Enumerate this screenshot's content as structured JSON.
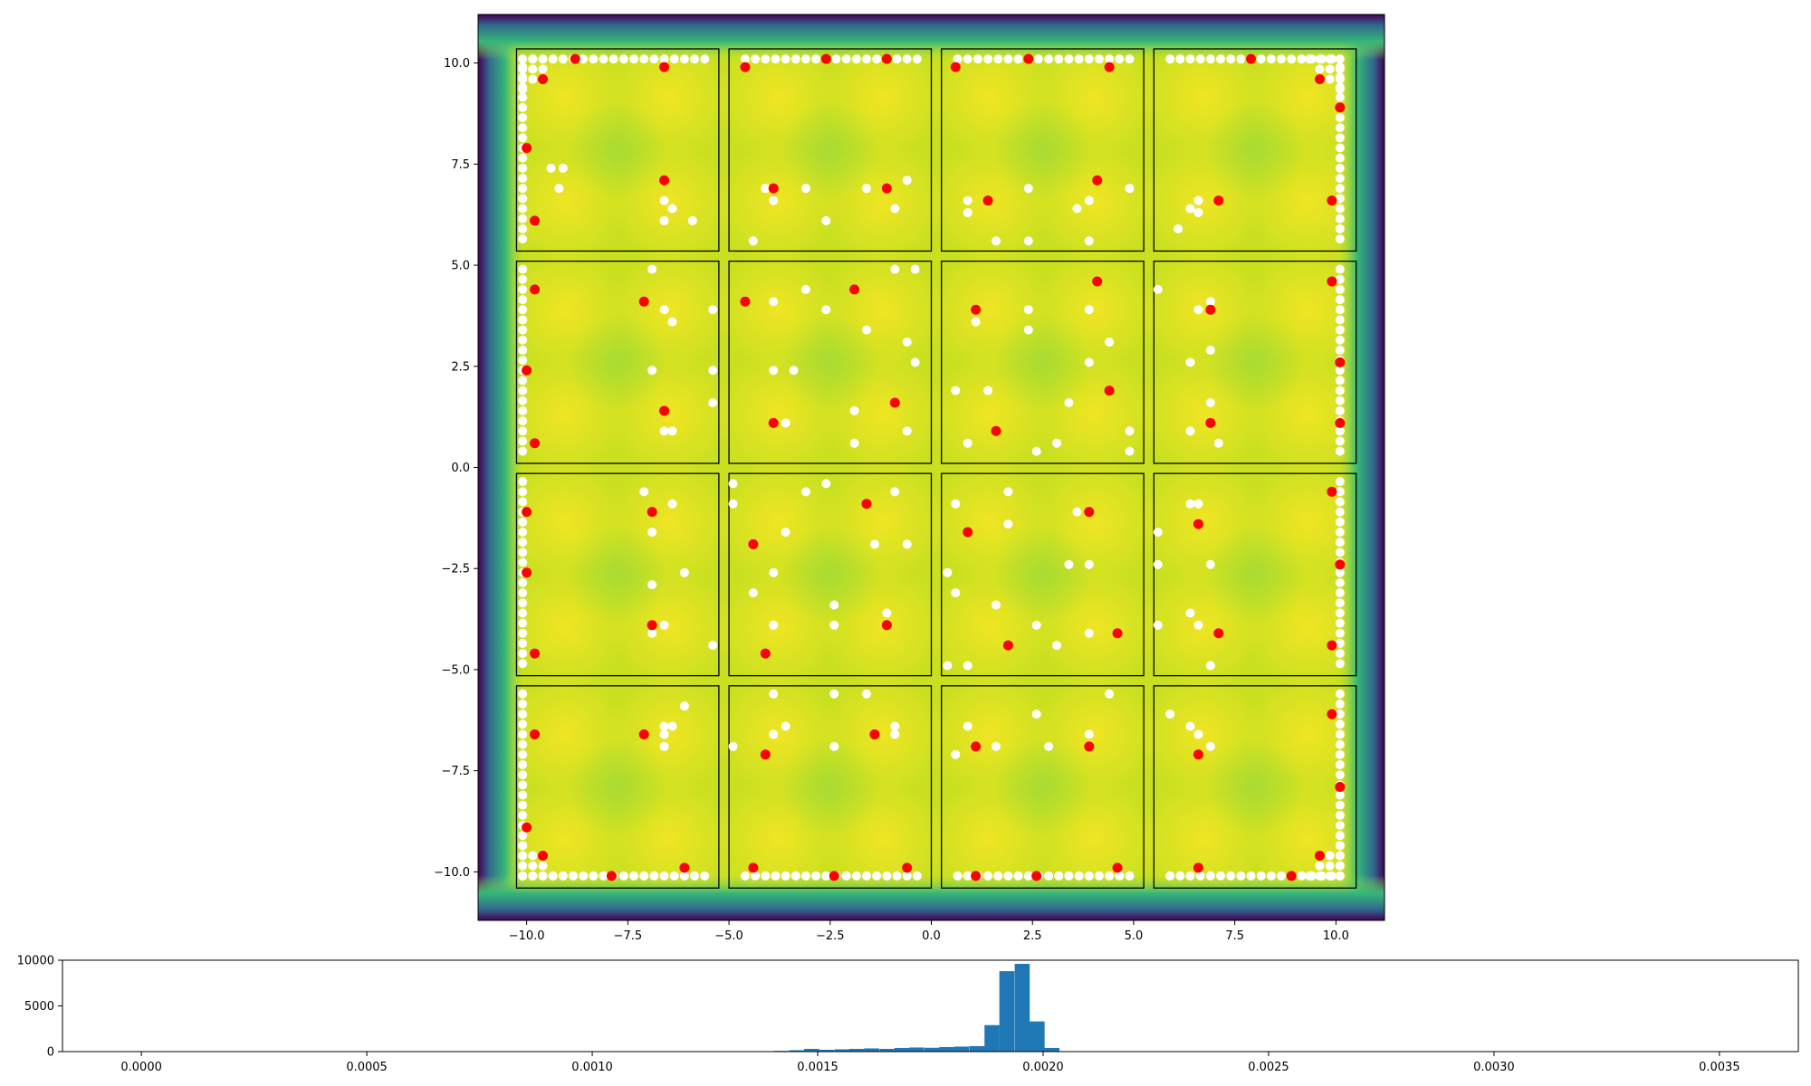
{
  "chart_data": [
    {
      "type": "heatmap",
      "title": "",
      "xlabel": "",
      "ylabel": "",
      "xlim": [
        -11.2,
        11.2
      ],
      "ylim": [
        -11.2,
        11.2
      ],
      "xticks": [
        -10,
        -7.5,
        -5,
        -2.5,
        0,
        2.5,
        5,
        7.5,
        10
      ],
      "xtick_labels": [
        "−10.0",
        "−7.5",
        "−5.0",
        "−2.5",
        "0.0",
        "2.5",
        "5.0",
        "7.5",
        "10.0"
      ],
      "yticks": [
        -10,
        -7.5,
        -5,
        -2.5,
        0,
        2.5,
        5,
        7.5,
        10
      ],
      "ytick_labels": [
        "−10.0",
        "−7.5",
        "−5.0",
        "−2.5",
        "0.0",
        "2.5",
        "5.0",
        "7.5",
        "10.0"
      ],
      "colormap": "viridis",
      "colors": {
        "white_points": "#ffffff",
        "red_points": "#ff0000",
        "box_outline": "#000000"
      },
      "cells": [
        {
          "x0": -10.25,
          "x1": -5.25,
          "y0": 5.35,
          "y1": 10.35
        },
        {
          "x0": -5.0,
          "x1": 0.0,
          "y0": 5.35,
          "y1": 10.35
        },
        {
          "x0": 0.25,
          "x1": 5.25,
          "y0": 5.35,
          "y1": 10.35
        },
        {
          "x0": 5.5,
          "x1": 10.5,
          "y0": 5.35,
          "y1": 10.35
        },
        {
          "x0": -10.25,
          "x1": -5.25,
          "y0": 0.1,
          "y1": 5.1
        },
        {
          "x0": -5.0,
          "x1": 0.0,
          "y0": 0.1,
          "y1": 5.1
        },
        {
          "x0": 0.25,
          "x1": 5.25,
          "y0": 0.1,
          "y1": 5.1
        },
        {
          "x0": 5.5,
          "x1": 10.5,
          "y0": 0.1,
          "y1": 5.1
        },
        {
          "x0": -10.25,
          "x1": -5.25,
          "y0": -5.15,
          "y1": -0.15
        },
        {
          "x0": -5.0,
          "x1": 0.0,
          "y0": -5.15,
          "y1": -0.15
        },
        {
          "x0": 0.25,
          "x1": 5.25,
          "y0": -5.15,
          "y1": -0.15
        },
        {
          "x0": 5.5,
          "x1": 10.5,
          "y0": -5.15,
          "y1": -0.15
        },
        {
          "x0": -10.25,
          "x1": -5.25,
          "y0": -10.4,
          "y1": -5.4
        },
        {
          "x0": -5.0,
          "x1": 0.0,
          "y0": -10.4,
          "y1": -5.4
        },
        {
          "x0": 0.25,
          "x1": 5.25,
          "y0": -10.4,
          "y1": -5.4
        },
        {
          "x0": 5.5,
          "x1": 10.5,
          "y0": -10.4,
          "y1": -5.4
        }
      ],
      "red_points": [
        [
          -8.8,
          10.1
        ],
        [
          -9.6,
          9.6
        ],
        [
          -6.6,
          9.9
        ],
        [
          -10.0,
          7.9
        ],
        [
          -9.8,
          6.1
        ],
        [
          -6.6,
          7.1
        ],
        [
          -4.6,
          9.9
        ],
        [
          -2.6,
          10.1
        ],
        [
          -1.1,
          10.1
        ],
        [
          -3.9,
          6.9
        ],
        [
          -1.1,
          6.9
        ],
        [
          0.6,
          9.9
        ],
        [
          2.4,
          10.1
        ],
        [
          4.4,
          9.9
        ],
        [
          1.4,
          6.6
        ],
        [
          4.1,
          7.1
        ],
        [
          7.9,
          10.1
        ],
        [
          9.6,
          9.6
        ],
        [
          10.1,
          8.9
        ],
        [
          7.1,
          6.6
        ],
        [
          9.9,
          6.6
        ],
        [
          -9.8,
          4.4
        ],
        [
          -10.0,
          2.4
        ],
        [
          -9.8,
          0.6
        ],
        [
          -7.1,
          4.1
        ],
        [
          -6.6,
          1.4
        ],
        [
          -4.6,
          4.1
        ],
        [
          -1.9,
          4.4
        ],
        [
          -3.9,
          1.1
        ],
        [
          -0.9,
          1.6
        ],
        [
          1.1,
          3.9
        ],
        [
          4.1,
          4.6
        ],
        [
          4.4,
          1.9
        ],
        [
          1.6,
          0.9
        ],
        [
          6.9,
          3.9
        ],
        [
          9.9,
          4.6
        ],
        [
          10.1,
          2.6
        ],
        [
          6.9,
          1.1
        ],
        [
          10.1,
          1.1
        ],
        [
          -10.0,
          -1.1
        ],
        [
          -10.0,
          -2.6
        ],
        [
          -9.8,
          -4.6
        ],
        [
          -6.9,
          -1.1
        ],
        [
          -6.9,
          -3.9
        ],
        [
          -4.4,
          -1.9
        ],
        [
          -1.6,
          -0.9
        ],
        [
          -1.1,
          -3.9
        ],
        [
          -4.1,
          -4.6
        ],
        [
          0.9,
          -1.6
        ],
        [
          3.9,
          -1.1
        ],
        [
          1.9,
          -4.4
        ],
        [
          4.6,
          -4.1
        ],
        [
          6.6,
          -1.4
        ],
        [
          9.9,
          -0.6
        ],
        [
          10.1,
          -2.4
        ],
        [
          7.1,
          -4.1
        ],
        [
          9.9,
          -4.4
        ],
        [
          -9.8,
          -6.6
        ],
        [
          -7.1,
          -6.6
        ],
        [
          -10.0,
          -8.9
        ],
        [
          -9.6,
          -9.6
        ],
        [
          -6.1,
          -9.9
        ],
        [
          -7.9,
          -10.1
        ],
        [
          -4.1,
          -7.1
        ],
        [
          -1.4,
          -6.6
        ],
        [
          -4.4,
          -9.9
        ],
        [
          -2.4,
          -10.1
        ],
        [
          -0.6,
          -9.9
        ],
        [
          1.1,
          -6.9
        ],
        [
          3.9,
          -6.9
        ],
        [
          1.1,
          -10.1
        ],
        [
          2.6,
          -10.1
        ],
        [
          4.6,
          -9.9
        ],
        [
          6.6,
          -7.1
        ],
        [
          9.9,
          -6.1
        ],
        [
          10.1,
          -7.9
        ],
        [
          6.6,
          -9.9
        ],
        [
          9.6,
          -9.6
        ],
        [
          8.9,
          -10.1
        ]
      ],
      "white_points": [
        [
          -9.4,
          7.4
        ],
        [
          -9.1,
          7.4
        ],
        [
          -9.2,
          6.9
        ],
        [
          -6.6,
          6.6
        ],
        [
          -6.4,
          6.4
        ],
        [
          -5.9,
          6.1
        ],
        [
          -6.6,
          6.1
        ],
        [
          -4.1,
          6.9
        ],
        [
          -3.9,
          6.6
        ],
        [
          -3.1,
          6.9
        ],
        [
          -1.6,
          6.9
        ],
        [
          -0.6,
          7.1
        ],
        [
          -0.9,
          6.4
        ],
        [
          -2.6,
          6.1
        ],
        [
          -4.4,
          5.6
        ],
        [
          0.9,
          6.6
        ],
        [
          0.9,
          6.3
        ],
        [
          2.4,
          6.9
        ],
        [
          3.6,
          6.4
        ],
        [
          3.9,
          6.6
        ],
        [
          4.9,
          6.9
        ],
        [
          1.6,
          5.6
        ],
        [
          2.4,
          5.6
        ],
        [
          3.9,
          5.6
        ],
        [
          6.4,
          6.4
        ],
        [
          6.6,
          6.6
        ],
        [
          6.6,
          6.3
        ],
        [
          6.1,
          5.9
        ],
        [
          -6.9,
          4.9
        ],
        [
          -6.6,
          3.9
        ],
        [
          -6.4,
          3.6
        ],
        [
          -5.4,
          3.9
        ],
        [
          -6.9,
          2.4
        ],
        [
          -5.4,
          2.4
        ],
        [
          -5.4,
          1.6
        ],
        [
          -6.6,
          0.9
        ],
        [
          -6.4,
          0.9
        ],
        [
          -3.9,
          4.1
        ],
        [
          -3.1,
          4.4
        ],
        [
          -2.6,
          3.9
        ],
        [
          -1.6,
          3.4
        ],
        [
          -0.9,
          4.9
        ],
        [
          -0.4,
          4.9
        ],
        [
          -3.9,
          2.4
        ],
        [
          -3.4,
          2.4
        ],
        [
          -0.6,
          3.1
        ],
        [
          -0.4,
          2.6
        ],
        [
          -1.9,
          1.4
        ],
        [
          -3.6,
          1.1
        ],
        [
          -0.6,
          0.9
        ],
        [
          -1.9,
          0.6
        ],
        [
          1.1,
          3.6
        ],
        [
          2.4,
          3.9
        ],
        [
          2.4,
          3.4
        ],
        [
          3.9,
          3.9
        ],
        [
          4.4,
          3.1
        ],
        [
          3.9,
          2.6
        ],
        [
          0.6,
          1.9
        ],
        [
          1.4,
          1.9
        ],
        [
          3.4,
          1.6
        ],
        [
          4.9,
          0.9
        ],
        [
          0.9,
          0.6
        ],
        [
          3.1,
          0.6
        ],
        [
          2.6,
          0.4
        ],
        [
          4.9,
          0.4
        ],
        [
          5.6,
          4.4
        ],
        [
          6.6,
          3.9
        ],
        [
          6.9,
          4.1
        ],
        [
          6.9,
          2.9
        ],
        [
          6.4,
          2.6
        ],
        [
          6.9,
          1.6
        ],
        [
          6.4,
          0.9
        ],
        [
          7.1,
          0.6
        ],
        [
          -7.1,
          -0.6
        ],
        [
          -6.4,
          -0.9
        ],
        [
          -6.9,
          -1.6
        ],
        [
          -6.1,
          -2.6
        ],
        [
          -6.9,
          -2.9
        ],
        [
          -6.6,
          -3.9
        ],
        [
          -6.9,
          -4.1
        ],
        [
          -5.4,
          -4.4
        ],
        [
          -4.9,
          -0.4
        ],
        [
          -4.9,
          -0.9
        ],
        [
          -3.1,
          -0.6
        ],
        [
          -2.6,
          -0.4
        ],
        [
          -0.9,
          -0.6
        ],
        [
          -3.6,
          -1.6
        ],
        [
          -1.4,
          -1.9
        ],
        [
          -0.6,
          -1.9
        ],
        [
          -3.9,
          -2.6
        ],
        [
          -4.4,
          -3.1
        ],
        [
          -2.4,
          -3.4
        ],
        [
          -1.1,
          -3.6
        ],
        [
          -3.9,
          -3.9
        ],
        [
          -2.4,
          -3.9
        ],
        [
          0.6,
          -0.9
        ],
        [
          1.9,
          -0.6
        ],
        [
          3.6,
          -1.1
        ],
        [
          1.9,
          -1.4
        ],
        [
          3.4,
          -2.4
        ],
        [
          3.9,
          -2.4
        ],
        [
          0.4,
          -2.6
        ],
        [
          0.6,
          -3.1
        ],
        [
          1.6,
          -3.4
        ],
        [
          2.6,
          -3.9
        ],
        [
          3.9,
          -4.1
        ],
        [
          3.1,
          -4.4
        ],
        [
          0.4,
          -4.9
        ],
        [
          0.9,
          -4.9
        ],
        [
          6.4,
          -0.9
        ],
        [
          6.6,
          -0.9
        ],
        [
          5.6,
          -1.6
        ],
        [
          5.6,
          -2.4
        ],
        [
          6.9,
          -2.4
        ],
        [
          6.4,
          -3.6
        ],
        [
          6.6,
          -3.9
        ],
        [
          5.6,
          -3.9
        ],
        [
          6.9,
          -4.9
        ],
        [
          -6.1,
          -5.9
        ],
        [
          -6.6,
          -6.4
        ],
        [
          -6.4,
          -6.4
        ],
        [
          -6.6,
          -6.6
        ],
        [
          -6.6,
          -6.9
        ],
        [
          -3.9,
          -5.6
        ],
        [
          -2.4,
          -5.6
        ],
        [
          -1.6,
          -5.6
        ],
        [
          -3.6,
          -6.4
        ],
        [
          -3.9,
          -6.6
        ],
        [
          -0.9,
          -6.4
        ],
        [
          -0.9,
          -6.6
        ],
        [
          -4.9,
          -6.9
        ],
        [
          -2.4,
          -6.9
        ],
        [
          4.4,
          -5.6
        ],
        [
          2.6,
          -6.1
        ],
        [
          0.9,
          -6.4
        ],
        [
          3.9,
          -6.6
        ],
        [
          1.6,
          -6.9
        ],
        [
          2.9,
          -6.9
        ],
        [
          0.6,
          -7.1
        ],
        [
          5.9,
          -6.1
        ],
        [
          6.4,
          -6.4
        ],
        [
          6.6,
          -6.6
        ],
        [
          6.9,
          -6.9
        ]
      ]
    },
    {
      "type": "bar",
      "title": "",
      "xlabel": "",
      "ylabel": "",
      "xlim": [
        -0.000175,
        0.003675
      ],
      "ylim": [
        0,
        10000
      ],
      "xticks": [
        0.0,
        0.0005,
        0.001,
        0.0015,
        0.002,
        0.0025,
        0.003,
        0.0035
      ],
      "xtick_labels": [
        "0.0000",
        "0.0005",
        "0.0010",
        "0.0015",
        "0.0020",
        "0.0025",
        "0.0030",
        "0.0035"
      ],
      "yticks": [
        0,
        5000,
        10000
      ],
      "ytick_labels": [
        "0",
        "5000",
        "10000"
      ],
      "color": "#1f77b4",
      "bin_width": 3.33e-05,
      "bin_starts": [
        0.00137,
        0.001403,
        0.001437,
        0.00147,
        0.001503,
        0.001537,
        0.00157,
        0.001603,
        0.001637,
        0.00167,
        0.001703,
        0.001737,
        0.00177,
        0.001803,
        0.001837,
        0.00187,
        0.001903,
        0.001937,
        0.00197,
        0.002003
      ],
      "values": [
        40,
        80,
        150,
        300,
        200,
        250,
        300,
        350,
        300,
        400,
        450,
        420,
        500,
        550,
        600,
        2900,
        8800,
        9600,
        3300,
        400
      ]
    }
  ]
}
